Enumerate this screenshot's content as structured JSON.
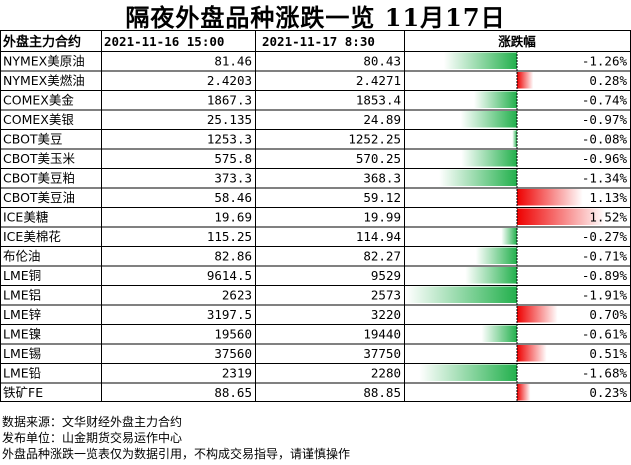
{
  "title": "隔夜外盘品种涨跌一览  11月17日",
  "colors": {
    "up": "#ee0000",
    "down": "#22b04c",
    "grid": "#000000",
    "bar_fade": "#ffffff"
  },
  "chart_data": {
    "type": "table",
    "columns": [
      "外盘主力合约",
      "2021-11-16 15:00",
      "2021-11-17 8:30",
      "涨跌幅"
    ],
    "rows": [
      {
        "name": "NYMEX美原油",
        "prev": "81.46",
        "curr": "80.43",
        "change": -1.26,
        "change_text": "-1.26%"
      },
      {
        "name": "NYMEX美燃油",
        "prev": "2.4203",
        "curr": "2.4271",
        "change": 0.28,
        "change_text": "0.28%"
      },
      {
        "name": "COMEX美金",
        "prev": "1867.3",
        "curr": "1853.4",
        "change": -0.74,
        "change_text": "-0.74%"
      },
      {
        "name": "COMEX美银",
        "prev": "25.135",
        "curr": "24.89",
        "change": -0.97,
        "change_text": "-0.97%"
      },
      {
        "name": "CBOT美豆",
        "prev": "1253.3",
        "curr": "1252.25",
        "change": -0.08,
        "change_text": "-0.08%"
      },
      {
        "name": "CBOT美玉米",
        "prev": "575.8",
        "curr": "570.25",
        "change": -0.96,
        "change_text": "-0.96%"
      },
      {
        "name": "CBOT美豆粕",
        "prev": "373.3",
        "curr": "368.3",
        "change": -1.34,
        "change_text": "-1.34%"
      },
      {
        "name": "CBOT美豆油",
        "prev": "58.46",
        "curr": "59.12",
        "change": 1.13,
        "change_text": "1.13%"
      },
      {
        "name": "ICE美糖",
        "prev": "19.69",
        "curr": "19.99",
        "change": 1.52,
        "change_text": "1.52%"
      },
      {
        "name": "ICE美棉花",
        "prev": "115.25",
        "curr": "114.94",
        "change": -0.27,
        "change_text": "-0.27%"
      },
      {
        "name": "布伦油",
        "prev": "82.86",
        "curr": "82.27",
        "change": -0.71,
        "change_text": "-0.71%"
      },
      {
        "name": "LME铜",
        "prev": "9614.5",
        "curr": "9529",
        "change": -0.89,
        "change_text": "-0.89%"
      },
      {
        "name": "LME铝",
        "prev": "2623",
        "curr": "2573",
        "change": -1.91,
        "change_text": "-1.91%"
      },
      {
        "name": "LME锌",
        "prev": "3197.5",
        "curr": "3220",
        "change": 0.7,
        "change_text": "0.70%"
      },
      {
        "name": "LME镍",
        "prev": "19560",
        "curr": "19440",
        "change": -0.61,
        "change_text": "-0.61%"
      },
      {
        "name": "LME锡",
        "prev": "37560",
        "curr": "37750",
        "change": 0.51,
        "change_text": "0.51%"
      },
      {
        "name": "LME铅",
        "prev": "2319",
        "curr": "2280",
        "change": -1.68,
        "change_text": "-1.68%"
      },
      {
        "name": "铁矿FE",
        "prev": "88.65",
        "curr": "88.85",
        "change": 0.23,
        "change_text": "0.23%"
      }
    ]
  },
  "notes": {
    "source": "数据来源：文华财经外盘主力合约",
    "publisher": "发布单位：山金期货交易运作中心",
    "disclaimer": "外盘品种涨跌一览表仅为数据引用，不构成交易指导，请谨慎操作"
  }
}
